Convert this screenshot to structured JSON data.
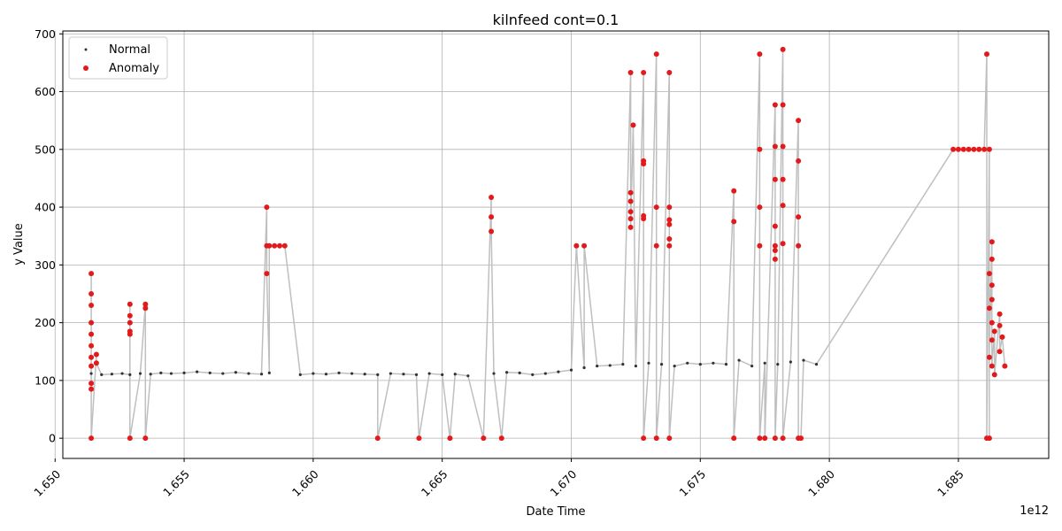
{
  "chart_data": {
    "type": "scatter",
    "title": "kilnfeed cont=0.1",
    "xlabel": "Date Time",
    "ylabel": "y Value",
    "x_offset_label": "1e12",
    "xlim": [
      1.6503,
      1.6885
    ],
    "ylim": [
      -35,
      705
    ],
    "xticks": [
      1.65,
      1.655,
      1.66,
      1.665,
      1.67,
      1.675,
      1.68,
      1.685
    ],
    "xtick_labels": [
      "1.650",
      "1.655",
      "1.660",
      "1.665",
      "1.670",
      "1.675",
      "1.680",
      "1.685"
    ],
    "yticks": [
      0,
      100,
      200,
      300,
      400,
      500,
      600,
      700
    ],
    "ytick_labels": [
      "0",
      "100",
      "200",
      "300",
      "400",
      "500",
      "600",
      "700"
    ],
    "grid": true,
    "legend_position": "top-left",
    "colors": {
      "normal": "#333333",
      "anomaly": "#e31a1c",
      "line": "#bfbfbf"
    },
    "series": [
      {
        "name": "Normal",
        "values": [
          [
            1.6514,
            112
          ],
          [
            1.6518,
            110
          ],
          [
            1.6522,
            111
          ],
          [
            1.6526,
            112
          ],
          [
            1.6529,
            110
          ],
          [
            1.6533,
            112
          ],
          [
            1.6537,
            111
          ],
          [
            1.6541,
            113
          ],
          [
            1.6545,
            112
          ],
          [
            1.655,
            113
          ],
          [
            1.6555,
            115
          ],
          [
            1.656,
            113
          ],
          [
            1.6565,
            112
          ],
          [
            1.657,
            114
          ],
          [
            1.6575,
            112
          ],
          [
            1.658,
            111
          ],
          [
            1.6583,
            113
          ],
          [
            1.6595,
            110
          ],
          [
            1.66,
            112
          ],
          [
            1.6605,
            111
          ],
          [
            1.661,
            113
          ],
          [
            1.6615,
            112
          ],
          [
            1.662,
            111
          ],
          [
            1.6625,
            110
          ],
          [
            1.663,
            112
          ],
          [
            1.6635,
            111
          ],
          [
            1.664,
            110
          ],
          [
            1.6645,
            112
          ],
          [
            1.665,
            110
          ],
          [
            1.6655,
            111
          ],
          [
            1.666,
            108
          ],
          [
            1.667,
            112
          ],
          [
            1.6675,
            114
          ],
          [
            1.668,
            113
          ],
          [
            1.6685,
            110
          ],
          [
            1.669,
            112
          ],
          [
            1.6695,
            115
          ],
          [
            1.67,
            118
          ],
          [
            1.6705,
            122
          ],
          [
            1.671,
            125
          ],
          [
            1.6715,
            126
          ],
          [
            1.672,
            128
          ],
          [
            1.6725,
            125
          ],
          [
            1.673,
            130
          ],
          [
            1.6735,
            128
          ],
          [
            1.674,
            125
          ],
          [
            1.6745,
            130
          ],
          [
            1.675,
            128
          ],
          [
            1.6755,
            130
          ],
          [
            1.676,
            128
          ],
          [
            1.6765,
            135
          ],
          [
            1.677,
            125
          ],
          [
            1.6775,
            130
          ],
          [
            1.678,
            128
          ],
          [
            1.6785,
            132
          ],
          [
            1.679,
            135
          ],
          [
            1.6795,
            128
          ]
        ]
      },
      {
        "name": "Anomaly",
        "values": [
          [
            1.6514,
            285
          ],
          [
            1.6514,
            250
          ],
          [
            1.6514,
            230
          ],
          [
            1.6514,
            200
          ],
          [
            1.6514,
            180
          ],
          [
            1.6514,
            160
          ],
          [
            1.6514,
            140
          ],
          [
            1.6514,
            125
          ],
          [
            1.6514,
            95
          ],
          [
            1.6514,
            85
          ],
          [
            1.6514,
            0
          ],
          [
            1.6516,
            145
          ],
          [
            1.6516,
            130
          ],
          [
            1.6529,
            232
          ],
          [
            1.6529,
            212
          ],
          [
            1.6529,
            200
          ],
          [
            1.6529,
            185
          ],
          [
            1.6529,
            180
          ],
          [
            1.6529,
            0
          ],
          [
            1.6535,
            232
          ],
          [
            1.6535,
            225
          ],
          [
            1.6535,
            0
          ],
          [
            1.6582,
            400
          ],
          [
            1.6582,
            333
          ],
          [
            1.6583,
            333
          ],
          [
            1.6585,
            333
          ],
          [
            1.6587,
            333
          ],
          [
            1.6589,
            333
          ],
          [
            1.6582,
            285
          ],
          [
            1.6625,
            0
          ],
          [
            1.6641,
            0
          ],
          [
            1.6653,
            0
          ],
          [
            1.6666,
            0
          ],
          [
            1.6669,
            417
          ],
          [
            1.6669,
            383
          ],
          [
            1.6669,
            358
          ],
          [
            1.6673,
            0
          ],
          [
            1.6702,
            333
          ],
          [
            1.6705,
            333
          ],
          [
            1.6723,
            633
          ],
          [
            1.6724,
            542
          ],
          [
            1.6723,
            425
          ],
          [
            1.6723,
            410
          ],
          [
            1.6723,
            392
          ],
          [
            1.6723,
            380
          ],
          [
            1.6723,
            365
          ],
          [
            1.6728,
            633
          ],
          [
            1.6728,
            480
          ],
          [
            1.6728,
            475
          ],
          [
            1.6728,
            385
          ],
          [
            1.6728,
            380
          ],
          [
            1.6728,
            0
          ],
          [
            1.6733,
            665
          ],
          [
            1.6733,
            400
          ],
          [
            1.6733,
            333
          ],
          [
            1.6733,
            0
          ],
          [
            1.6738,
            633
          ],
          [
            1.6738,
            400
          ],
          [
            1.6738,
            378
          ],
          [
            1.6738,
            370
          ],
          [
            1.6738,
            345
          ],
          [
            1.6738,
            333
          ],
          [
            1.6738,
            0
          ],
          [
            1.6763,
            428
          ],
          [
            1.6763,
            375
          ],
          [
            1.6763,
            0
          ],
          [
            1.6773,
            665
          ],
          [
            1.6773,
            500
          ],
          [
            1.6773,
            400
          ],
          [
            1.6773,
            333
          ],
          [
            1.6773,
            0
          ],
          [
            1.6775,
            0
          ],
          [
            1.6779,
            577
          ],
          [
            1.6779,
            505
          ],
          [
            1.6779,
            448
          ],
          [
            1.6779,
            367
          ],
          [
            1.6779,
            333
          ],
          [
            1.6779,
            325
          ],
          [
            1.6779,
            310
          ],
          [
            1.6779,
            0
          ],
          [
            1.6782,
            673
          ],
          [
            1.6782,
            577
          ],
          [
            1.6782,
            505
          ],
          [
            1.6782,
            448
          ],
          [
            1.6782,
            403
          ],
          [
            1.6782,
            337
          ],
          [
            1.6782,
            0
          ],
          [
            1.6788,
            550
          ],
          [
            1.6788,
            480
          ],
          [
            1.6788,
            383
          ],
          [
            1.6788,
            333
          ],
          [
            1.6788,
            0
          ],
          [
            1.6789,
            0
          ],
          [
            1.6848,
            500
          ],
          [
            1.685,
            500
          ],
          [
            1.6852,
            500
          ],
          [
            1.6854,
            500
          ],
          [
            1.6856,
            500
          ],
          [
            1.6858,
            500
          ],
          [
            1.686,
            500
          ],
          [
            1.6862,
            500
          ],
          [
            1.6861,
            665
          ],
          [
            1.6861,
            0
          ],
          [
            1.6862,
            0
          ],
          [
            1.6863,
            340
          ],
          [
            1.6863,
            310
          ],
          [
            1.6862,
            285
          ],
          [
            1.6863,
            265
          ],
          [
            1.6863,
            240
          ],
          [
            1.6862,
            225
          ],
          [
            1.6863,
            200
          ],
          [
            1.6864,
            185
          ],
          [
            1.6863,
            170
          ],
          [
            1.6862,
            140
          ],
          [
            1.6863,
            125
          ],
          [
            1.6864,
            110
          ],
          [
            1.6866,
            215
          ],
          [
            1.6866,
            195
          ],
          [
            1.6867,
            175
          ],
          [
            1.6866,
            150
          ],
          [
            1.6868,
            125
          ]
        ]
      }
    ]
  }
}
